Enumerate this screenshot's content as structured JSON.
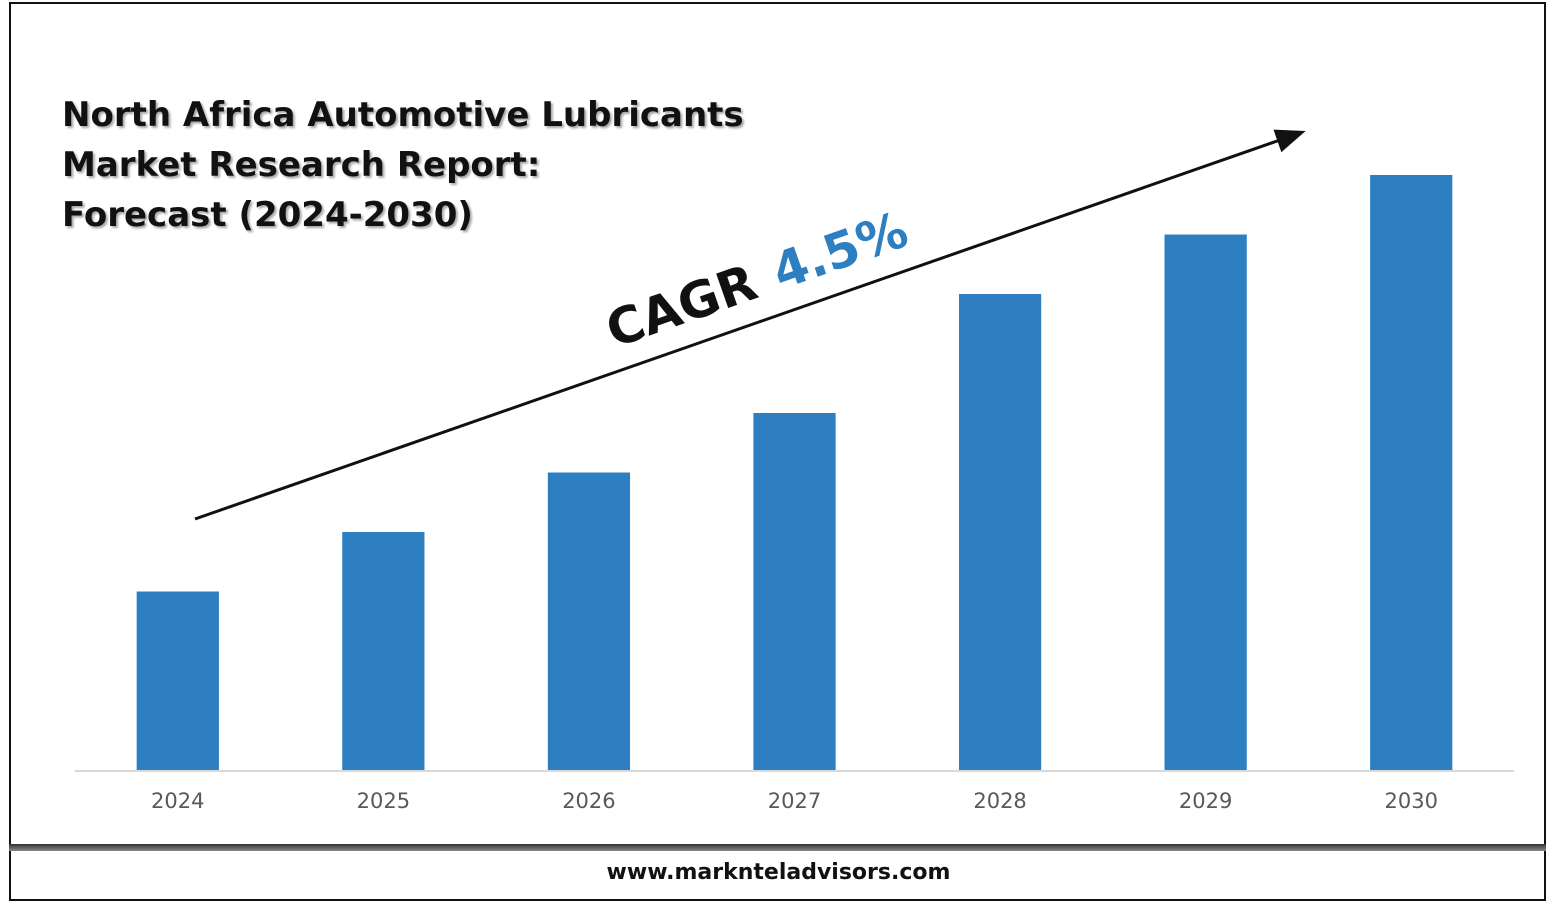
{
  "colors": {
    "bar": "#2e7fc2",
    "cagr_value": "#2e7fc2",
    "axis": "#d9d9d9",
    "text": "#111111",
    "tick": "#595959"
  },
  "chart_data": {
    "type": "bar",
    "title": [
      "North Africa Automotive Lubricants",
      "Market Research Report:",
      "Forecast (2024-2030)"
    ],
    "categories": [
      "2024",
      "2025",
      "2026",
      "2027",
      "2028",
      "2029",
      "2030"
    ],
    "values": [
      30,
      40,
      50,
      60,
      80,
      90,
      100
    ],
    "value_note": "relative bar heights; no value axis shown",
    "ylim": [
      0,
      100
    ],
    "grid": false,
    "legend": "none",
    "annotation": {
      "label": "CAGR",
      "value": "4.5%"
    }
  },
  "footer": {
    "url": "www.marknteladvisors.com"
  }
}
